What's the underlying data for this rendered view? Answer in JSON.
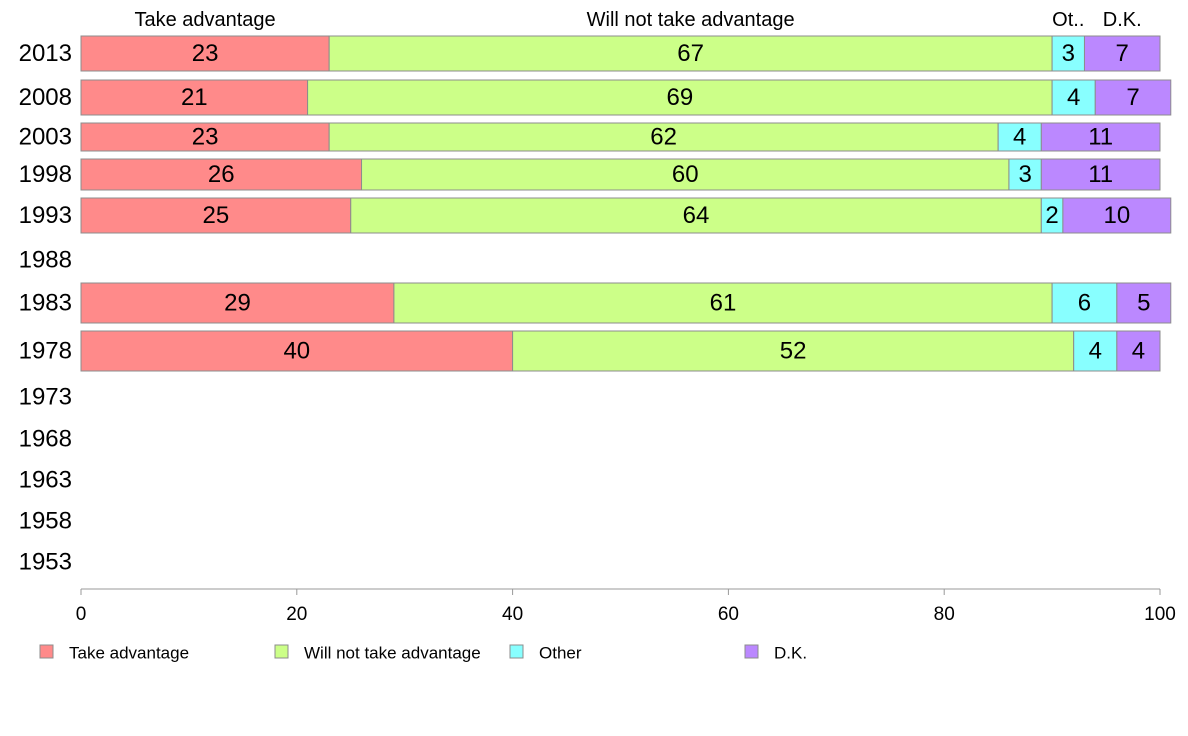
{
  "chart_data": {
    "type": "bar",
    "orientation": "horizontal",
    "stacked": true,
    "categories": [
      "2013",
      "2008",
      "2003",
      "1998",
      "1993",
      "1988",
      "1983",
      "1978",
      "1973",
      "1968",
      "1963",
      "1958",
      "1953"
    ],
    "column_headers": [
      "Take advantage",
      "Will not take advantage",
      "Ot..",
      "D.K."
    ],
    "series": [
      {
        "name": "Take advantage",
        "color": "#ff8a8a",
        "values": [
          23,
          21,
          23,
          26,
          25,
          null,
          29,
          40,
          null,
          null,
          null,
          null,
          null
        ]
      },
      {
        "name": "Will not take advantage",
        "color": "#ccff88",
        "values": [
          67,
          69,
          62,
          60,
          64,
          null,
          61,
          52,
          null,
          null,
          null,
          null,
          null
        ]
      },
      {
        "name": "Other",
        "color": "#88ffff",
        "values": [
          3,
          4,
          4,
          3,
          2,
          null,
          6,
          4,
          null,
          null,
          null,
          null,
          null
        ]
      },
      {
        "name": "D.K.",
        "color": "#bb88ff",
        "values": [
          7,
          7,
          11,
          11,
          10,
          null,
          5,
          4,
          null,
          null,
          null,
          null,
          null
        ]
      }
    ],
    "xlim": [
      0,
      100
    ],
    "xticks": [
      0,
      20,
      40,
      60,
      80,
      100
    ],
    "grid": false,
    "legend_position": "bottom",
    "title": "",
    "xlabel": "",
    "ylabel": ""
  }
}
